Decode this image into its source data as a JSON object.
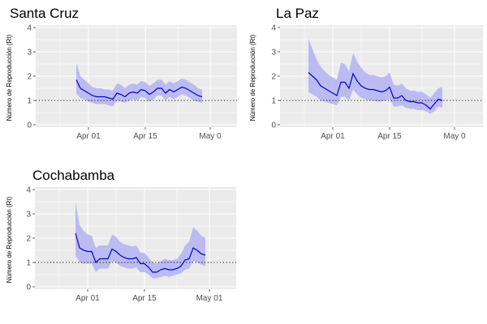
{
  "chart_data": [
    {
      "type": "line",
      "title": "Santa Cruz",
      "ylabel": "Número de Reproducción (Rt)",
      "xlabel": "",
      "x_ticks": [
        "Apr 01",
        "Apr 15",
        "May 0"
      ],
      "y_ticks": [
        "0",
        "1",
        "2",
        "3",
        "4"
      ],
      "ylim": [
        -0.1,
        4.1
      ],
      "x_start": "2020-03-19",
      "reference_line": 1,
      "series": [
        {
          "x": [
            "2020-03-29",
            "2020-03-30",
            "2020-03-31",
            "2020-04-01",
            "2020-04-02",
            "2020-04-03",
            "2020-04-04",
            "2020-04-05",
            "2020-04-06",
            "2020-04-07",
            "2020-04-08",
            "2020-04-09",
            "2020-04-10",
            "2020-04-11",
            "2020-04-12",
            "2020-04-13",
            "2020-04-14",
            "2020-04-15",
            "2020-04-16",
            "2020-04-17",
            "2020-04-18",
            "2020-04-19",
            "2020-04-20",
            "2020-04-21",
            "2020-04-22",
            "2020-04-23",
            "2020-04-24",
            "2020-04-25",
            "2020-04-26",
            "2020-04-27",
            "2020-04-28",
            "2020-04-29"
          ],
          "values": [
            1.85,
            1.5,
            1.4,
            1.3,
            1.2,
            1.15,
            1.15,
            1.15,
            1.1,
            1.05,
            1.3,
            1.25,
            1.15,
            1.3,
            1.35,
            1.3,
            1.45,
            1.4,
            1.25,
            1.35,
            1.5,
            1.5,
            1.3,
            1.45,
            1.35,
            1.45,
            1.55,
            1.5,
            1.4,
            1.3,
            1.2,
            1.15
          ],
          "upper": [
            2.55,
            2.0,
            1.85,
            1.7,
            1.55,
            1.5,
            1.5,
            1.45,
            1.45,
            1.4,
            1.7,
            1.65,
            1.5,
            1.65,
            1.7,
            1.65,
            1.8,
            1.75,
            1.6,
            1.7,
            1.85,
            1.85,
            1.65,
            1.8,
            1.7,
            1.8,
            1.9,
            1.85,
            1.75,
            1.65,
            1.5,
            1.45
          ],
          "lower": [
            1.3,
            1.1,
            1.05,
            0.95,
            0.9,
            0.85,
            0.85,
            0.85,
            0.8,
            0.75,
            1.0,
            0.95,
            0.9,
            1.0,
            1.05,
            1.0,
            1.15,
            1.1,
            0.95,
            1.05,
            1.2,
            1.2,
            1.0,
            1.15,
            1.05,
            1.15,
            1.25,
            1.2,
            1.1,
            1.0,
            0.95,
            0.9
          ]
        }
      ],
      "colors": {
        "line": "#0000cd",
        "band": "#b3b3f2",
        "panel": "#ebebeb",
        "grid": "#ffffff"
      }
    },
    {
      "type": "line",
      "title": "La Paz",
      "ylabel": "Número de Reproducción (Rt)",
      "xlabel": "",
      "x_ticks": [
        "Apr 01",
        "Apr 15",
        "May 0"
      ],
      "y_ticks": [
        "0",
        "1",
        "2",
        "3",
        "4"
      ],
      "ylim": [
        -0.1,
        4.1
      ],
      "x_start": "2020-03-19",
      "reference_line": 1,
      "series": [
        {
          "x": [
            "2020-03-26",
            "2020-03-27",
            "2020-03-28",
            "2020-03-29",
            "2020-03-30",
            "2020-03-31",
            "2020-04-01",
            "2020-04-02",
            "2020-04-03",
            "2020-04-04",
            "2020-04-05",
            "2020-04-06",
            "2020-04-07",
            "2020-04-08",
            "2020-04-09",
            "2020-04-10",
            "2020-04-11",
            "2020-04-12",
            "2020-04-13",
            "2020-04-14",
            "2020-04-15",
            "2020-04-16",
            "2020-04-17",
            "2020-04-18",
            "2020-04-19",
            "2020-04-20",
            "2020-04-21",
            "2020-04-22",
            "2020-04-23",
            "2020-04-24",
            "2020-04-25",
            "2020-04-26",
            "2020-04-27",
            "2020-04-28"
          ],
          "values": [
            2.15,
            2.0,
            1.85,
            1.6,
            1.5,
            1.4,
            1.3,
            1.2,
            1.75,
            1.75,
            1.5,
            2.1,
            1.8,
            1.6,
            1.5,
            1.45,
            1.45,
            1.4,
            1.35,
            1.4,
            1.55,
            1.1,
            1.1,
            1.2,
            1.0,
            0.95,
            0.95,
            0.9,
            0.9,
            0.8,
            0.65,
            0.85,
            1.05,
            1.0
          ],
          "upper": [
            3.55,
            3.1,
            2.7,
            2.4,
            2.2,
            2.05,
            1.95,
            1.85,
            2.55,
            2.5,
            2.2,
            2.95,
            2.6,
            2.35,
            2.15,
            2.05,
            2.05,
            2.0,
            1.95,
            2.0,
            2.15,
            1.65,
            1.6,
            1.7,
            1.5,
            1.4,
            1.4,
            1.35,
            1.35,
            1.25,
            1.1,
            1.3,
            1.5,
            1.55
          ],
          "lower": [
            1.35,
            1.25,
            1.15,
            1.0,
            0.95,
            0.9,
            0.85,
            0.8,
            1.15,
            1.15,
            1.0,
            1.45,
            1.25,
            1.1,
            1.05,
            1.0,
            1.0,
            0.95,
            0.95,
            1.0,
            1.05,
            0.75,
            0.75,
            0.8,
            0.7,
            0.65,
            0.65,
            0.6,
            0.6,
            0.55,
            0.45,
            0.55,
            0.75,
            0.7
          ]
        }
      ],
      "colors": {
        "line": "#0000cd",
        "band": "#b3b3f2",
        "panel": "#ebebeb",
        "grid": "#ffffff"
      }
    },
    {
      "type": "line",
      "title": "Cochabamba",
      "ylabel": "Número de Reproducción (Rt)",
      "xlabel": "",
      "x_ticks": [
        "Apr 01",
        "Apr 15",
        "May 01"
      ],
      "y_ticks": [
        "0",
        "1",
        "2",
        "3",
        "4"
      ],
      "ylim": [
        -0.1,
        4.1
      ],
      "x_start": "2020-03-19",
      "reference_line": 1,
      "series": [
        {
          "x": [
            "2020-03-29",
            "2020-03-30",
            "2020-03-31",
            "2020-04-01",
            "2020-04-02",
            "2020-04-03",
            "2020-04-04",
            "2020-04-05",
            "2020-04-06",
            "2020-04-07",
            "2020-04-08",
            "2020-04-09",
            "2020-04-10",
            "2020-04-11",
            "2020-04-12",
            "2020-04-13",
            "2020-04-14",
            "2020-04-15",
            "2020-04-16",
            "2020-04-17",
            "2020-04-18",
            "2020-04-19",
            "2020-04-20",
            "2020-04-21",
            "2020-04-22",
            "2020-04-23",
            "2020-04-24",
            "2020-04-25",
            "2020-04-26",
            "2020-04-27",
            "2020-04-28",
            "2020-04-29",
            "2020-04-30"
          ],
          "values": [
            2.2,
            1.6,
            1.5,
            1.45,
            1.45,
            1.0,
            1.15,
            1.15,
            1.15,
            1.55,
            1.45,
            1.3,
            1.2,
            1.15,
            1.15,
            1.2,
            0.95,
            0.95,
            0.8,
            0.6,
            0.6,
            0.7,
            0.75,
            0.7,
            0.7,
            0.75,
            0.85,
            1.1,
            1.15,
            1.6,
            1.5,
            1.35,
            1.3
          ],
          "upper": [
            3.5,
            2.55,
            2.3,
            2.15,
            2.1,
            1.6,
            1.7,
            1.7,
            1.7,
            2.15,
            2.05,
            1.85,
            1.75,
            1.7,
            1.65,
            1.7,
            1.4,
            1.4,
            1.2,
            1.0,
            0.95,
            1.05,
            1.15,
            1.1,
            1.1,
            1.15,
            1.35,
            1.7,
            1.85,
            2.45,
            2.3,
            2.1,
            2.0
          ],
          "lower": [
            1.3,
            1.0,
            0.95,
            0.95,
            0.95,
            0.6,
            0.75,
            0.75,
            0.75,
            1.05,
            1.0,
            0.85,
            0.8,
            0.75,
            0.75,
            0.8,
            0.6,
            0.6,
            0.5,
            0.35,
            0.35,
            0.4,
            0.45,
            0.4,
            0.45,
            0.5,
            0.55,
            0.7,
            0.75,
            1.05,
            1.0,
            0.9,
            0.85
          ]
        }
      ],
      "colors": {
        "line": "#0000cd",
        "band": "#b3b3f2",
        "panel": "#ebebeb",
        "grid": "#ffffff"
      }
    }
  ]
}
